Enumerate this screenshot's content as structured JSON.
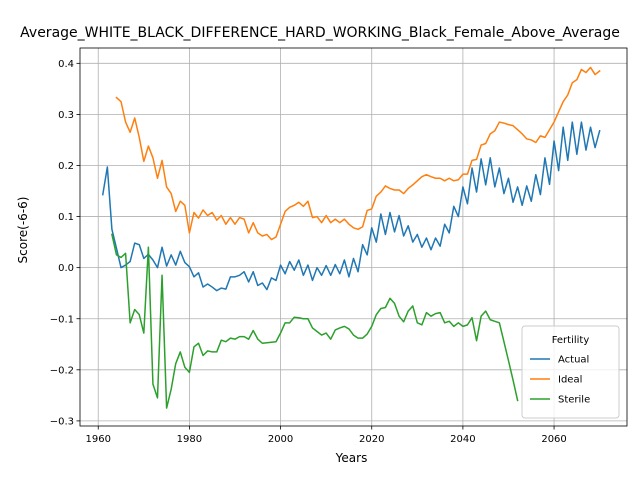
{
  "chart_data": {
    "type": "line",
    "title": "Average_WHITE_BLACK_DIFFERENCE_HARD_WORKING_Black_Female_Above_Average",
    "xlabel": "Years",
    "ylabel": "Score(-6-6)",
    "xlim": [
      1956,
      2076
    ],
    "ylim": [
      -0.31,
      0.43
    ],
    "xticks": [
      1960,
      1980,
      2000,
      2020,
      2040,
      2060
    ],
    "xtick_labels": [
      "1960",
      "1980",
      "2000",
      "2020",
      "2040",
      "2060"
    ],
    "yticks": [
      -0.3,
      -0.2,
      -0.1,
      0.0,
      0.1,
      0.2,
      0.3,
      0.4
    ],
    "ytick_labels": [
      "−0.3",
      "−0.2",
      "−0.1",
      "0.0",
      "0.1",
      "0.2",
      "0.3",
      "0.4"
    ],
    "grid": true,
    "legend": {
      "title": "Fertility",
      "position": "lower right"
    },
    "series": [
      {
        "name": "Actual",
        "color": "#1f77b4",
        "x": [
          1961,
          1962,
          1963,
          1964,
          1965,
          1966,
          1967,
          1968,
          1969,
          1970,
          1971,
          1972,
          1973,
          1974,
          1975,
          1976,
          1977,
          1978,
          1979,
          1980,
          1981,
          1982,
          1983,
          1984,
          1985,
          1986,
          1987,
          1988,
          1989,
          1990,
          1991,
          1992,
          1993,
          1994,
          1995,
          1996,
          1997,
          1998,
          1999,
          2000,
          2001,
          2002,
          2003,
          2004,
          2005,
          2006,
          2007,
          2008,
          2009,
          2010,
          2011,
          2012,
          2013,
          2014,
          2015,
          2016,
          2017,
          2018,
          2019,
          2020,
          2021,
          2022,
          2023,
          2024,
          2025,
          2026,
          2027,
          2028,
          2029,
          2030,
          2031,
          2032,
          2033,
          2034,
          2035,
          2036,
          2037,
          2038,
          2039,
          2040,
          2041,
          2042,
          2043,
          2044,
          2045,
          2046,
          2047,
          2048,
          2049,
          2050,
          2051,
          2052,
          2053,
          2054,
          2055,
          2056,
          2057,
          2058,
          2059,
          2060,
          2061,
          2062,
          2063,
          2064,
          2065,
          2066,
          2067,
          2068,
          2069,
          2070
        ],
        "y": [
          0.143,
          0.197,
          0.075,
          0.038,
          0.0,
          0.005,
          0.012,
          0.048,
          0.045,
          0.018,
          0.026,
          0.015,
          0.0,
          0.04,
          0.003,
          0.025,
          0.005,
          0.032,
          0.01,
          0.002,
          -0.018,
          -0.01,
          -0.038,
          -0.032,
          -0.038,
          -0.045,
          -0.04,
          -0.042,
          -0.018,
          -0.018,
          -0.015,
          -0.008,
          -0.028,
          -0.008,
          -0.035,
          -0.03,
          -0.043,
          -0.02,
          -0.025,
          0.005,
          -0.012,
          0.012,
          -0.005,
          0.015,
          -0.015,
          0.005,
          -0.025,
          0.0,
          -0.015,
          0.004,
          -0.015,
          0.006,
          -0.012,
          0.015,
          -0.018,
          0.018,
          -0.008,
          0.045,
          0.025,
          0.078,
          0.05,
          0.105,
          0.065,
          0.108,
          0.07,
          0.102,
          0.062,
          0.082,
          0.05,
          0.065,
          0.04,
          0.058,
          0.035,
          0.058,
          0.042,
          0.085,
          0.068,
          0.12,
          0.1,
          0.158,
          0.125,
          0.195,
          0.148,
          0.213,
          0.162,
          0.215,
          0.158,
          0.195,
          0.145,
          0.175,
          0.128,
          0.158,
          0.122,
          0.16,
          0.13,
          0.182,
          0.143,
          0.215,
          0.163,
          0.248,
          0.19,
          0.275,
          0.21,
          0.285,
          0.222,
          0.285,
          0.23,
          0.275,
          0.235,
          0.268
        ]
      },
      {
        "name": "Ideal",
        "color": "#ff7f0e",
        "x": [
          1964,
          1965,
          1966,
          1967,
          1968,
          1969,
          1970,
          1971,
          1972,
          1973,
          1974,
          1975,
          1976,
          1977,
          1978,
          1979,
          1980,
          1981,
          1982,
          1983,
          1984,
          1985,
          1986,
          1987,
          1988,
          1989,
          1990,
          1991,
          1992,
          1993,
          1994,
          1995,
          1996,
          1997,
          1998,
          1999,
          2000,
          2001,
          2002,
          2003,
          2004,
          2005,
          2006,
          2007,
          2008,
          2009,
          2010,
          2011,
          2012,
          2013,
          2014,
          2015,
          2016,
          2017,
          2018,
          2019,
          2020,
          2021,
          2022,
          2023,
          2024,
          2025,
          2026,
          2027,
          2028,
          2029,
          2030,
          2031,
          2032,
          2033,
          2034,
          2035,
          2036,
          2037,
          2038,
          2039,
          2040,
          2041,
          2042,
          2043,
          2044,
          2045,
          2046,
          2047,
          2048,
          2049,
          2050,
          2051,
          2052,
          2053,
          2054,
          2055,
          2056,
          2057,
          2058,
          2059,
          2060,
          2061,
          2062,
          2063,
          2064,
          2065,
          2066,
          2067,
          2068,
          2069,
          2070
        ],
        "y": [
          0.333,
          0.325,
          0.285,
          0.265,
          0.293,
          0.255,
          0.208,
          0.238,
          0.215,
          0.175,
          0.21,
          0.158,
          0.145,
          0.11,
          0.13,
          0.122,
          0.068,
          0.108,
          0.097,
          0.113,
          0.102,
          0.108,
          0.093,
          0.102,
          0.085,
          0.098,
          0.085,
          0.098,
          0.095,
          0.068,
          0.088,
          0.068,
          0.062,
          0.065,
          0.055,
          0.06,
          0.085,
          0.11,
          0.118,
          0.122,
          0.128,
          0.12,
          0.13,
          0.098,
          0.1,
          0.088,
          0.102,
          0.088,
          0.095,
          0.088,
          0.095,
          0.085,
          0.078,
          0.075,
          0.08,
          0.112,
          0.115,
          0.14,
          0.148,
          0.16,
          0.155,
          0.152,
          0.152,
          0.145,
          0.155,
          0.162,
          0.17,
          0.178,
          0.182,
          0.178,
          0.175,
          0.175,
          0.17,
          0.175,
          0.17,
          0.172,
          0.183,
          0.183,
          0.21,
          0.212,
          0.24,
          0.243,
          0.262,
          0.268,
          0.285,
          0.283,
          0.28,
          0.278,
          0.27,
          0.262,
          0.252,
          0.25,
          0.245,
          0.258,
          0.255,
          0.27,
          0.285,
          0.305,
          0.325,
          0.338,
          0.362,
          0.368,
          0.388,
          0.382,
          0.392,
          0.378,
          0.385
        ]
      },
      {
        "name": "Sterile",
        "color": "#2ca02c",
        "x": [
          1963,
          1964,
          1965,
          1966,
          1967,
          1968,
          1969,
          1970,
          1971,
          1972,
          1973,
          1974,
          1975,
          1976,
          1977,
          1978,
          1979,
          1980,
          1981,
          1982,
          1983,
          1984,
          1985,
          1986,
          1987,
          1988,
          1989,
          1990,
          1991,
          1992,
          1993,
          1994,
          1995,
          1996,
          1997,
          1998,
          1999,
          2000,
          2001,
          2002,
          2003,
          2004,
          2005,
          2006,
          2007,
          2008,
          2009,
          2010,
          2011,
          2012,
          2013,
          2014,
          2015,
          2016,
          2017,
          2018,
          2019,
          2020,
          2021,
          2022,
          2023,
          2024,
          2025,
          2026,
          2027,
          2028,
          2029,
          2030,
          2031,
          2032,
          2033,
          2034,
          2035,
          2036,
          2037,
          2038,
          2039,
          2040,
          2041,
          2042,
          2043,
          2044,
          2045,
          2046,
          2047,
          2048,
          2049,
          2050,
          2051,
          2052
        ],
        "y": [
          0.065,
          0.025,
          0.02,
          0.028,
          -0.108,
          -0.082,
          -0.092,
          -0.128,
          0.04,
          -0.228,
          -0.255,
          -0.015,
          -0.275,
          -0.238,
          -0.188,
          -0.165,
          -0.195,
          -0.205,
          -0.155,
          -0.148,
          -0.172,
          -0.163,
          -0.165,
          -0.165,
          -0.142,
          -0.145,
          -0.138,
          -0.14,
          -0.135,
          -0.135,
          -0.14,
          -0.123,
          -0.14,
          -0.148,
          -0.147,
          -0.146,
          -0.145,
          -0.128,
          -0.108,
          -0.108,
          -0.097,
          -0.098,
          -0.1,
          -0.1,
          -0.118,
          -0.125,
          -0.132,
          -0.128,
          -0.14,
          -0.122,
          -0.118,
          -0.115,
          -0.12,
          -0.132,
          -0.138,
          -0.138,
          -0.13,
          -0.115,
          -0.092,
          -0.08,
          -0.078,
          -0.06,
          -0.07,
          -0.095,
          -0.106,
          -0.085,
          -0.075,
          -0.108,
          -0.112,
          -0.088,
          -0.095,
          -0.09,
          -0.088,
          -0.108,
          -0.105,
          -0.115,
          -0.108,
          -0.115,
          -0.112,
          -0.098,
          -0.143,
          -0.095,
          -0.085,
          -0.102,
          -0.105,
          -0.108,
          -0.145,
          -0.182,
          -0.22,
          -0.26
        ]
      }
    ]
  }
}
